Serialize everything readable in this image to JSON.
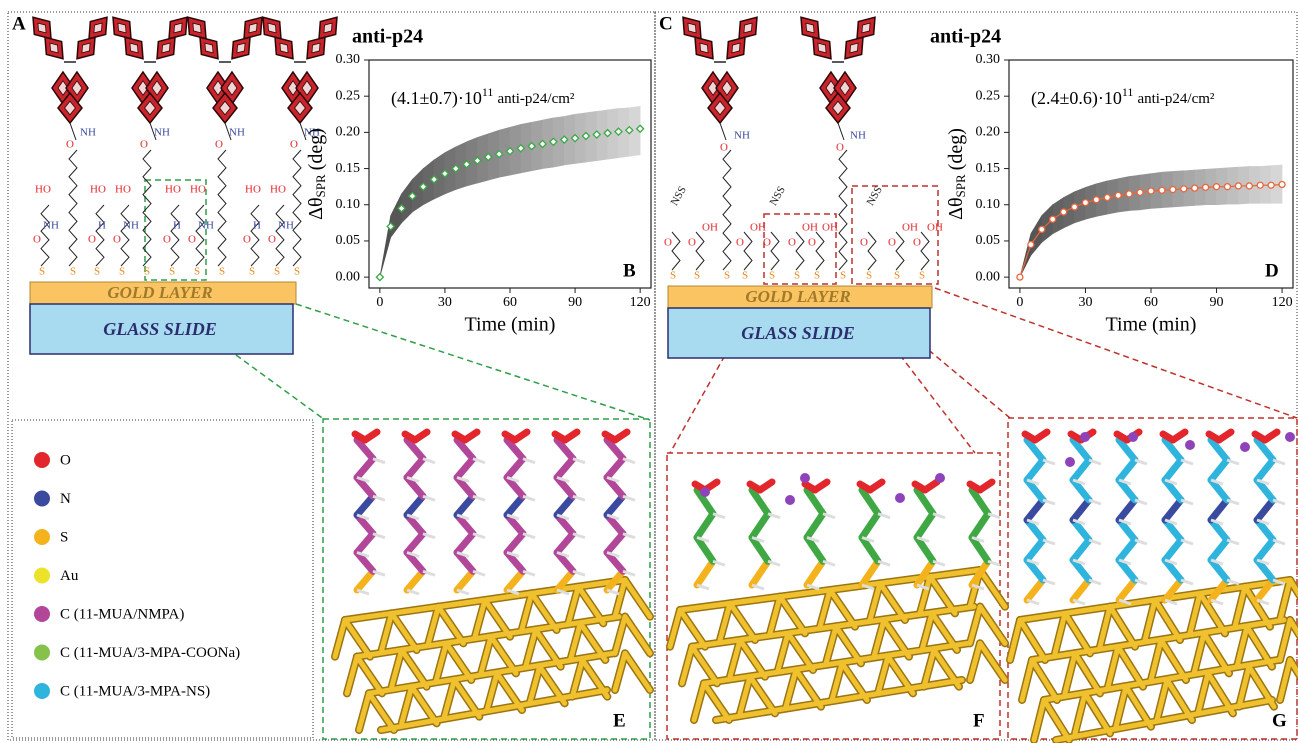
{
  "panel_labels": [
    "A",
    "C",
    "E",
    "F",
    "G"
  ],
  "schematic": {
    "gold": "GOLD LAYER",
    "glass": "GLASS SLIDE",
    "chem": [
      "NH",
      "O",
      "HO",
      "N",
      "H",
      "S",
      "OH",
      "NSS"
    ]
  },
  "legend": [
    {
      "label": "O",
      "color": "#e3262b"
    },
    {
      "label": "N",
      "color": "#3a4a9e"
    },
    {
      "label": "S",
      "color": "#f4b31c"
    },
    {
      "label": "Au",
      "color": "#ece22a"
    },
    {
      "label": "C (11-MUA/NMPA)",
      "color": "#b2479a"
    },
    {
      "label": "C (11-MUA/3-MPA-COONa)",
      "color": "#86c24a"
    },
    {
      "label": "C (11-MUA/3-MPA-NS)",
      "color": "#2fb4de"
    }
  ],
  "chart_data": [
    {
      "type": "scatter",
      "panel": "B",
      "title": "anti-p24",
      "annotation": {
        "base": "(4.1±0.7)·10",
        "exponent": "11",
        "unit": "anti-p24/cm²"
      },
      "x_label": "Time (min)",
      "y_label": {
        "symbol": "Δθ",
        "subscript": "SPR",
        "unit": "(deg)"
      },
      "marker": "diamond",
      "line": false,
      "color": "#3aa845",
      "xlim": [
        -5,
        125
      ],
      "ylim": [
        -0.015,
        0.3
      ],
      "xticks": [
        0,
        30,
        60,
        90,
        120
      ],
      "yticks": [
        {
          "value": 0,
          "label": "0.00"
        },
        {
          "value": 0.05,
          "label": "0.05"
        },
        {
          "value": 0.1,
          "label": "0.10"
        },
        {
          "value": 0.15,
          "label": "0.15"
        },
        {
          "value": 0.2,
          "label": "0.20"
        },
        {
          "value": 0.25,
          "label": "0.25"
        },
        {
          "value": 0.3,
          "label": "0.30"
        }
      ],
      "x": [
        0,
        5,
        10,
        15,
        20,
        25,
        30,
        35,
        40,
        45,
        50,
        55,
        60,
        65,
        70,
        75,
        80,
        85,
        90,
        95,
        100,
        105,
        110,
        115,
        120
      ],
      "values": [
        0,
        0.07,
        0.095,
        0.112,
        0.125,
        0.135,
        0.143,
        0.15,
        0.156,
        0.161,
        0.166,
        0.17,
        0.174,
        0.178,
        0.181,
        0.184,
        0.187,
        0.19,
        0.192,
        0.195,
        0.197,
        0.199,
        0.201,
        0.203,
        0.205
      ],
      "band": {
        "upper": [
          0,
          0.085,
          0.115,
          0.135,
          0.15,
          0.162,
          0.172,
          0.18,
          0.187,
          0.193,
          0.198,
          0.203,
          0.207,
          0.211,
          0.214,
          0.217,
          0.22,
          0.222,
          0.225,
          0.227,
          0.229,
          0.231,
          0.233,
          0.234,
          0.236
        ],
        "lower": [
          0,
          0.055,
          0.075,
          0.09,
          0.1,
          0.108,
          0.115,
          0.121,
          0.126,
          0.13,
          0.134,
          0.138,
          0.141,
          0.144,
          0.147,
          0.15,
          0.152,
          0.155,
          0.157,
          0.159,
          0.161,
          0.163,
          0.165,
          0.167,
          0.169
        ]
      }
    },
    {
      "type": "scatter",
      "panel": "D",
      "title": "anti-p24",
      "annotation": {
        "base": "(2.4±0.6)·10",
        "exponent": "11",
        "unit": "anti-p24/cm²"
      },
      "x_label": "Time (min)",
      "y_label": {
        "symbol": "Δθ",
        "subscript": "SPR",
        "unit": "(deg)"
      },
      "marker": "circle",
      "line": true,
      "color": "#e8663a",
      "xlim": [
        -5,
        125
      ],
      "ylim": [
        -0.015,
        0.3
      ],
      "xticks": [
        0,
        30,
        60,
        90,
        120
      ],
      "yticks": [
        {
          "value": 0,
          "label": "0.00"
        },
        {
          "value": 0.05,
          "label": "0.05"
        },
        {
          "value": 0.1,
          "label": "0.10"
        },
        {
          "value": 0.15,
          "label": "0.15"
        },
        {
          "value": 0.2,
          "label": "0.20"
        },
        {
          "value": 0.25,
          "label": "0.25"
        },
        {
          "value": 0.3,
          "label": "0.30"
        }
      ],
      "x": [
        0,
        5,
        10,
        15,
        20,
        25,
        30,
        35,
        40,
        45,
        50,
        55,
        60,
        65,
        70,
        75,
        80,
        85,
        90,
        95,
        100,
        105,
        110,
        115,
        120
      ],
      "values": [
        0,
        0.045,
        0.066,
        0.08,
        0.09,
        0.097,
        0.103,
        0.107,
        0.11,
        0.113,
        0.115,
        0.117,
        0.119,
        0.12,
        0.121,
        0.122,
        0.123,
        0.124,
        0.125,
        0.125,
        0.126,
        0.126,
        0.127,
        0.127,
        0.128
      ],
      "band": {
        "upper": [
          0,
          0.06,
          0.085,
          0.1,
          0.11,
          0.118,
          0.124,
          0.129,
          0.133,
          0.136,
          0.139,
          0.141,
          0.143,
          0.145,
          0.146,
          0.147,
          0.148,
          0.149,
          0.15,
          0.151,
          0.152,
          0.153,
          0.153,
          0.154,
          0.155
        ],
        "lower": [
          0,
          0.03,
          0.048,
          0.06,
          0.068,
          0.075,
          0.08,
          0.084,
          0.087,
          0.09,
          0.092,
          0.093,
          0.095,
          0.096,
          0.097,
          0.098,
          0.099,
          0.1,
          0.1,
          0.101,
          0.101,
          0.102,
          0.102,
          0.102,
          0.102
        ]
      }
    }
  ]
}
